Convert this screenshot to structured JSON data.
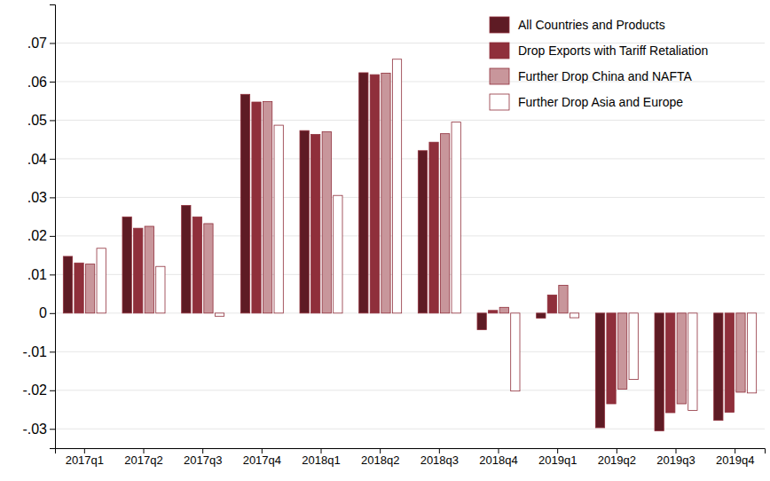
{
  "chart_data": {
    "type": "bar",
    "categories": [
      "2017q1",
      "2017q2",
      "2017q3",
      "2017q4",
      "2018q1",
      "2018q2",
      "2018q3",
      "2018q4",
      "2019q1",
      "2019q2",
      "2019q3",
      "2019q4"
    ],
    "series": [
      {
        "name": "All Countries and Products",
        "color": "#5e1b24",
        "values": [
          0.0147,
          0.0249,
          0.0279,
          0.0567,
          0.0473,
          0.0623,
          0.0421,
          -0.0043,
          -0.0013,
          -0.0297,
          -0.0305,
          -0.0278
        ]
      },
      {
        "name": "Drop Exports with Tariff Retaliation",
        "color": "#8f2f3b",
        "values": [
          0.013,
          0.022,
          0.0249,
          0.0547,
          0.0463,
          0.0618,
          0.0443,
          0.0007,
          0.0047,
          -0.0235,
          -0.0258,
          -0.0257
        ]
      },
      {
        "name": "Further Drop China and NAFTA",
        "color": "#c8969b",
        "values": [
          0.0127,
          0.0225,
          0.0232,
          0.0548,
          0.047,
          0.0622,
          0.0465,
          0.0015,
          0.0072,
          -0.0197,
          -0.0235,
          -0.0205
        ]
      },
      {
        "name": "Further Drop Asia and Europe",
        "color": "#ffffff",
        "values": [
          0.0168,
          0.0121,
          -0.0008,
          0.0487,
          0.0305,
          0.0658,
          0.0495,
          -0.0202,
          -0.0012,
          -0.0172,
          -0.0252,
          -0.0207
        ]
      }
    ],
    "ylim": [
      -0.035,
      0.08
    ],
    "yticks": [
      {
        "value": -0.03,
        "label": "-.03"
      },
      {
        "value": -0.02,
        "label": "-.02"
      },
      {
        "value": -0.01,
        "label": "-.01"
      },
      0,
      {
        "value": 0.01,
        "label": ".01"
      },
      {
        "value": 0.02,
        "label": ".02"
      },
      {
        "value": 0.03,
        "label": ".03"
      },
      {
        "value": 0.04,
        "label": ".04"
      },
      {
        "value": 0.05,
        "label": ".05"
      },
      {
        "value": 0.06,
        "label": ".06"
      },
      {
        "value": 0.07,
        "label": ".07"
      }
    ],
    "grid": true,
    "legend": "top-right"
  }
}
